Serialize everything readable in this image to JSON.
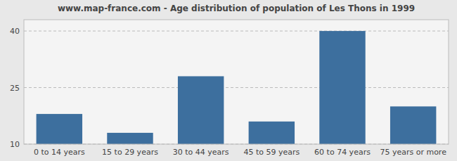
{
  "chart_data": {
    "type": "bar",
    "title": "www.map-france.com - Age distribution of population of Les Thons in 1999",
    "categories": [
      "0 to 14 years",
      "15 to 29 years",
      "30 to 44 years",
      "45 to 59 years",
      "60 to 74 years",
      "75 years or more"
    ],
    "values": [
      18,
      13,
      28,
      16,
      40,
      20
    ],
    "color": "#3d6f9e",
    "ylim": [
      10,
      43
    ],
    "yticks": [
      10,
      25,
      40
    ],
    "grid": true
  }
}
